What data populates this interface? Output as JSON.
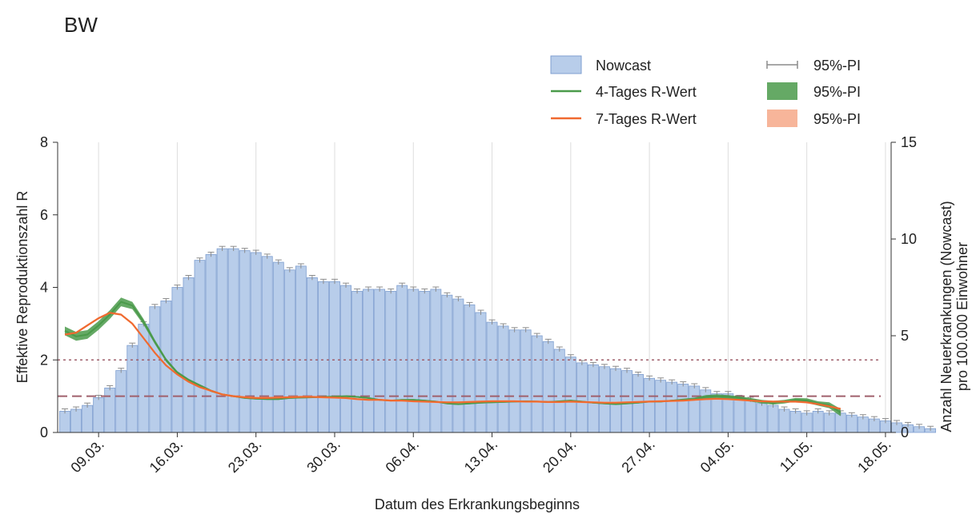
{
  "chart_data": {
    "type": "bar",
    "title": "BW",
    "xlabel": "Datum des Erkrankungsbeginns",
    "ylabel_left": "Effektive Reproduktionszahl R",
    "ylabel_right_line1": "Anzahl Neuerkrankungen (Nowcast)",
    "ylabel_right_line2": "pro 100.000 Einwohner",
    "x_start_date": "2020-03-06",
    "x_ticks": [
      "09.03.",
      "16.03.",
      "23.03.",
      "30.03.",
      "06.04.",
      "13.04.",
      "20.04.",
      "27.04.",
      "04.05.",
      "11.05.",
      "18.05."
    ],
    "x_tick_day_index": [
      3,
      10,
      17,
      24,
      31,
      38,
      45,
      52,
      59,
      66,
      73
    ],
    "ylim_left": [
      0,
      8
    ],
    "yticks_left": [
      "0",
      "2",
      "4",
      "6",
      "8"
    ],
    "ylim_right": [
      0,
      15
    ],
    "yticks_right": [
      "0",
      "5",
      "10",
      "15"
    ],
    "reference_lines_R": [
      1,
      2
    ],
    "legend": {
      "placement": "top-right",
      "items": [
        {
          "label": "Nowcast",
          "kind": "bar"
        },
        {
          "label": "95%-PI",
          "kind": "errorbar"
        },
        {
          "label": "4-Tages R-Wert",
          "kind": "line",
          "color": "#4a9a4a"
        },
        {
          "label": "95%-PI",
          "kind": "band",
          "color": "#4a9a4a"
        },
        {
          "label": "7-Tages R-Wert",
          "kind": "line",
          "color": "#f06a30"
        },
        {
          "label": "95%-PI",
          "kind": "band",
          "color": "#f7b59a"
        }
      ]
    },
    "colors": {
      "bar_fill": "#b8cdea",
      "bar_stroke": "#7f9fd0",
      "errorbar": "#8c8c8c",
      "r4_line": "#4a9a4a",
      "r4_band": "#4a9a4a",
      "r7_line": "#f06a30",
      "r7_band": "#f7b59a",
      "refline": "#a0606c"
    },
    "series": [
      {
        "name": "Nowcast",
        "axis": "right",
        "values": [
          1.1,
          1.2,
          1.4,
          1.8,
          2.3,
          3.2,
          4.5,
          5.6,
          6.5,
          6.8,
          7.5,
          8.0,
          8.9,
          9.2,
          9.5,
          9.5,
          9.4,
          9.3,
          9.1,
          8.8,
          8.4,
          8.6,
          8.0,
          7.8,
          7.8,
          7.6,
          7.3,
          7.4,
          7.4,
          7.3,
          7.6,
          7.4,
          7.3,
          7.4,
          7.1,
          6.9,
          6.6,
          6.2,
          5.7,
          5.5,
          5.3,
          5.3,
          5.0,
          4.7,
          4.3,
          3.9,
          3.6,
          3.5,
          3.4,
          3.3,
          3.2,
          3.0,
          2.8,
          2.7,
          2.6,
          2.5,
          2.4,
          2.2,
          2.0,
          2.0,
          1.8,
          1.7,
          1.5,
          1.4,
          1.2,
          1.1,
          1.0,
          1.1,
          1.0,
          1.0,
          0.9,
          0.8,
          0.7,
          0.6,
          0.5,
          0.4,
          0.3,
          0.2
        ]
      },
      {
        "name": "4-Tages R-Wert",
        "axis": "left",
        "values": [
          2.8,
          2.65,
          2.7,
          2.95,
          3.25,
          3.6,
          3.5,
          3.05,
          2.5,
          2.0,
          1.65,
          1.45,
          1.3,
          1.15,
          1.05,
          1.0,
          0.95,
          0.93,
          0.92,
          0.92,
          0.95,
          0.96,
          0.97,
          0.98,
          0.99,
          1.0,
          0.98,
          0.95,
          0.9,
          0.88,
          0.9,
          0.9,
          0.88,
          0.85,
          0.8,
          0.78,
          0.8,
          0.82,
          0.83,
          0.84,
          0.85,
          0.86,
          0.85,
          0.84,
          0.86,
          0.88,
          0.85,
          0.82,
          0.8,
          0.78,
          0.8,
          0.82,
          0.85,
          0.85,
          0.88,
          0.9,
          0.92,
          0.98,
          1.0,
          0.98,
          0.95,
          0.9,
          0.85,
          0.82,
          0.85,
          0.9,
          0.88,
          0.8,
          0.75,
          0.55
        ]
      },
      {
        "name": "7-Tages R-Wert",
        "axis": "left",
        "values": [
          2.7,
          2.75,
          2.95,
          3.15,
          3.3,
          3.25,
          3.0,
          2.6,
          2.2,
          1.85,
          1.6,
          1.4,
          1.25,
          1.15,
          1.05,
          1.0,
          0.97,
          0.95,
          0.95,
          0.96,
          0.97,
          0.98,
          0.98,
          0.97,
          0.96,
          0.95,
          0.92,
          0.9,
          0.9,
          0.88,
          0.88,
          0.86,
          0.85,
          0.84,
          0.83,
          0.83,
          0.84,
          0.85,
          0.86,
          0.86,
          0.86,
          0.85,
          0.85,
          0.84,
          0.84,
          0.85,
          0.84,
          0.83,
          0.82,
          0.82,
          0.83,
          0.84,
          0.85,
          0.86,
          0.87,
          0.88,
          0.9,
          0.92,
          0.93,
          0.92,
          0.9,
          0.88,
          0.86,
          0.85,
          0.85,
          0.85,
          0.83,
          0.78,
          0.72,
          0.65
        ]
      }
    ],
    "r4_band_halfwidth": [
      0.12,
      0.12,
      0.12,
      0.12,
      0.12,
      0.12,
      0.1,
      0.08,
      0.06,
      0.05,
      0.04,
      0.03,
      0.03,
      0.03,
      0.02,
      0.02,
      0.02,
      0.02,
      0.02,
      0.02,
      0.02,
      0.02,
      0.02,
      0.02,
      0.02,
      0.02,
      0.02,
      0.02,
      0.02,
      0.02,
      0.02,
      0.02,
      0.02,
      0.02,
      0.02,
      0.02,
      0.02,
      0.02,
      0.02,
      0.02,
      0.02,
      0.02,
      0.02,
      0.02,
      0.02,
      0.02,
      0.02,
      0.02,
      0.02,
      0.02,
      0.02,
      0.02,
      0.02,
      0.02,
      0.02,
      0.03,
      0.04,
      0.05,
      0.05,
      0.05,
      0.05,
      0.05,
      0.05,
      0.05,
      0.05,
      0.05,
      0.06,
      0.06,
      0.08,
      0.1
    ],
    "r7_band_halfwidth": 0.03,
    "nowcast_error_halfwidth": 0.12
  }
}
